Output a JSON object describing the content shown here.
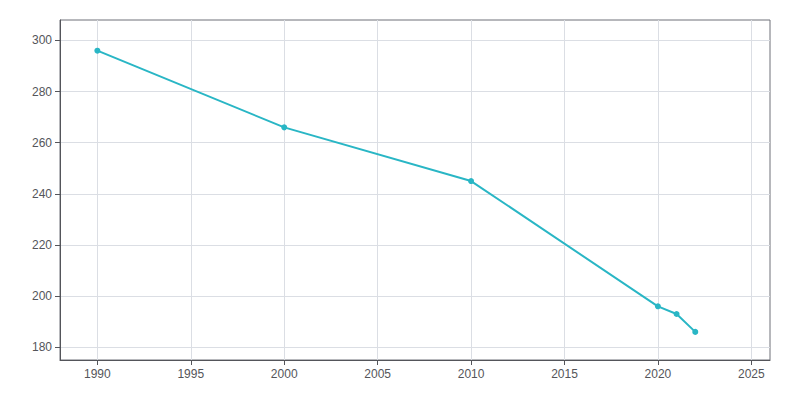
{
  "chart_data": {
    "type": "line",
    "x": [
      1990,
      2000,
      2010,
      2020,
      2021,
      2022
    ],
    "values": [
      296,
      266,
      245,
      196,
      193,
      186
    ],
    "color": "#29b6c5",
    "marker": "circle",
    "xlim": [
      1988,
      2026
    ],
    "ylim": [
      175,
      308
    ],
    "xticks": [
      1990,
      1995,
      2000,
      2005,
      2010,
      2015,
      2020,
      2025
    ],
    "yticks": [
      180,
      200,
      220,
      240,
      260,
      280,
      300
    ],
    "grid": true
  }
}
